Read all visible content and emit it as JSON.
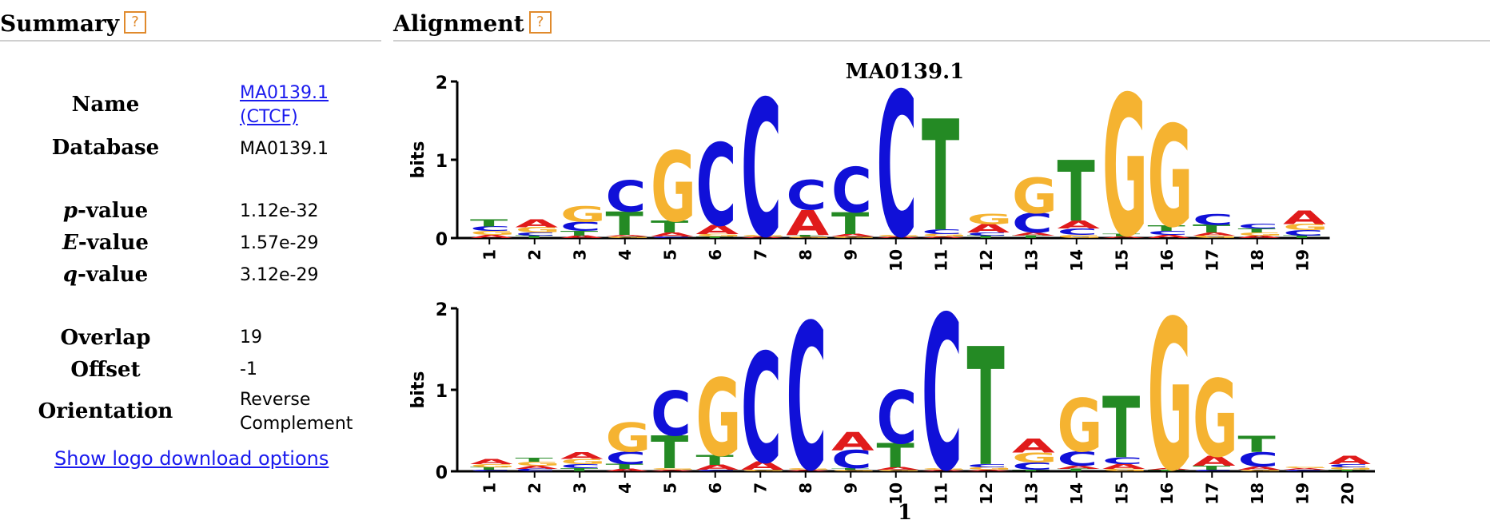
{
  "summary": {
    "title": "Summary",
    "help": "?",
    "rows": [
      {
        "label": "Name",
        "value_line1": "MA0139.1",
        "value_line2": "(CTCF)"
      },
      {
        "label": "Database",
        "value": "MA0139.1"
      },
      {
        "label_italic": "p",
        "label_rest": "-value",
        "value": "1.12e-32"
      },
      {
        "label_italic": "E",
        "label_rest": "-value",
        "value": "1.57e-29"
      },
      {
        "label_italic": "q",
        "label_rest": "-value",
        "value": "3.12e-29"
      },
      {
        "label": "Overlap",
        "value": "19"
      },
      {
        "label": "Offset",
        "value": "-1"
      },
      {
        "label": "Orientation",
        "value_line1": "Reverse",
        "value_line2": "Complement"
      }
    ],
    "download_link": "Show logo download options"
  },
  "alignment": {
    "title": "Alignment",
    "help": "?",
    "bottom_label": "1"
  },
  "colors": {
    "A": "#e01b1b",
    "C": "#1010d8",
    "G": "#f5b331",
    "T": "#248a24",
    "help": "#e08a2c",
    "link": "#1a1aee"
  },
  "chart_data": [
    {
      "type": "sequence-logo",
      "title": "MA0139.1",
      "ylabel": "bits",
      "ylim": [
        0,
        2
      ],
      "yticks": [
        "0",
        "1",
        "2"
      ],
      "positions": [
        "1",
        "2",
        "3",
        "4",
        "5",
        "6",
        "7",
        "8",
        "9",
        "10",
        "11",
        "12",
        "13",
        "14",
        "15",
        "16",
        "17",
        "18",
        "19"
      ],
      "stacks": [
        [
          [
            "T",
            0.09
          ],
          [
            "C",
            0.06
          ],
          [
            "G",
            0.05
          ],
          [
            "A",
            0.04
          ]
        ],
        [
          [
            "A",
            0.1
          ],
          [
            "G",
            0.07
          ],
          [
            "C",
            0.04
          ],
          [
            "T",
            0.03
          ]
        ],
        [
          [
            "G",
            0.2
          ],
          [
            "C",
            0.12
          ],
          [
            "T",
            0.06
          ],
          [
            "A",
            0.03
          ]
        ],
        [
          [
            "C",
            0.4
          ],
          [
            "T",
            0.3
          ],
          [
            "G",
            0.02
          ],
          [
            "A",
            0.02
          ]
        ],
        [
          [
            "G",
            0.9
          ],
          [
            "T",
            0.15
          ],
          [
            "A",
            0.05
          ],
          [
            "C",
            0.02
          ]
        ],
        [
          [
            "C",
            1.05
          ],
          [
            "A",
            0.12
          ],
          [
            "G",
            0.03
          ],
          [
            "T",
            0.02
          ]
        ],
        [
          [
            "C",
            1.75
          ],
          [
            "A",
            0.02
          ],
          [
            "G",
            0.02
          ]
        ],
        [
          [
            "C",
            0.38
          ],
          [
            "A",
            0.32
          ],
          [
            "G",
            0.02
          ],
          [
            "T",
            0.02
          ]
        ],
        [
          [
            "C",
            0.58
          ],
          [
            "T",
            0.28
          ],
          [
            "A",
            0.03
          ],
          [
            "G",
            0.02
          ]
        ],
        [
          [
            "C",
            1.85
          ],
          [
            "A",
            0.02
          ],
          [
            "G",
            0.02
          ]
        ],
        [
          [
            "T",
            1.42
          ],
          [
            "C",
            0.06
          ],
          [
            "G",
            0.03
          ],
          [
            "A",
            0.02
          ]
        ],
        [
          [
            "G",
            0.13
          ],
          [
            "A",
            0.11
          ],
          [
            "C",
            0.04
          ],
          [
            "T",
            0.03
          ]
        ],
        [
          [
            "G",
            0.45
          ],
          [
            "C",
            0.25
          ],
          [
            "A",
            0.04
          ],
          [
            "T",
            0.03
          ]
        ],
        [
          [
            "T",
            0.78
          ],
          [
            "A",
            0.1
          ],
          [
            "C",
            0.08
          ],
          [
            "G",
            0.04
          ]
        ],
        [
          [
            "G",
            1.8
          ],
          [
            "T",
            0.03
          ],
          [
            "A",
            0.02
          ]
        ],
        [
          [
            "G",
            1.3
          ],
          [
            "T",
            0.07
          ],
          [
            "C",
            0.05
          ],
          [
            "A",
            0.04
          ]
        ],
        [
          [
            "C",
            0.14
          ],
          [
            "T",
            0.1
          ],
          [
            "A",
            0.04
          ],
          [
            "G",
            0.03
          ]
        ],
        [
          [
            "C",
            0.06
          ],
          [
            "T",
            0.05
          ],
          [
            "G",
            0.04
          ],
          [
            "A",
            0.03
          ]
        ],
        [
          [
            "A",
            0.17
          ],
          [
            "G",
            0.08
          ],
          [
            "C",
            0.07
          ],
          [
            "T",
            0.03
          ]
        ]
      ]
    },
    {
      "type": "sequence-logo",
      "title": "",
      "ylabel": "bits",
      "ylim": [
        0,
        2
      ],
      "yticks": [
        "0",
        "1",
        "2"
      ],
      "positions": [
        "1",
        "2",
        "3",
        "4",
        "5",
        "6",
        "7",
        "8",
        "9",
        "10",
        "11",
        "12",
        "13",
        "14",
        "15",
        "16",
        "17",
        "18",
        "19",
        "20"
      ],
      "stacks": [
        [
          [
            "A",
            0.06
          ],
          [
            "G",
            0.04
          ],
          [
            "T",
            0.03
          ],
          [
            "C",
            0.02
          ]
        ],
        [
          [
            "G",
            0.05
          ],
          [
            "T",
            0.05
          ],
          [
            "A",
            0.04
          ],
          [
            "C",
            0.03
          ]
        ],
        [
          [
            "A",
            0.08
          ],
          [
            "G",
            0.06
          ],
          [
            "C",
            0.05
          ],
          [
            "T",
            0.04
          ]
        ],
        [
          [
            "G",
            0.36
          ],
          [
            "C",
            0.15
          ],
          [
            "T",
            0.06
          ],
          [
            "A",
            0.03
          ]
        ],
        [
          [
            "C",
            0.55
          ],
          [
            "T",
            0.4
          ],
          [
            "A",
            0.02
          ],
          [
            "G",
            0.02
          ]
        ],
        [
          [
            "G",
            0.95
          ],
          [
            "T",
            0.12
          ],
          [
            "A",
            0.06
          ],
          [
            "C",
            0.02
          ]
        ],
        [
          [
            "C",
            1.35
          ],
          [
            "A",
            0.1
          ],
          [
            "G",
            0.02
          ]
        ],
        [
          [
            "C",
            1.8
          ],
          [
            "A",
            0.02
          ],
          [
            "G",
            0.02
          ]
        ],
        [
          [
            "C",
            0.22
          ],
          [
            "A",
            0.22
          ],
          [
            "G",
            0.02
          ],
          [
            "T",
            0.02
          ]
        ],
        [
          [
            "C",
            0.65
          ],
          [
            "T",
            0.3
          ],
          [
            "A",
            0.03
          ],
          [
            "G",
            0.02
          ]
        ],
        [
          [
            "C",
            1.9
          ],
          [
            "A",
            0.02
          ],
          [
            "G",
            0.02
          ]
        ],
        [
          [
            "T",
            1.45
          ],
          [
            "C",
            0.04
          ],
          [
            "G",
            0.03
          ],
          [
            "A",
            0.02
          ]
        ],
        [
          [
            "G",
            0.12
          ],
          [
            "C",
            0.09
          ],
          [
            "A",
            0.17
          ],
          [
            "T",
            0.02
          ]
        ],
        [
          [
            "G",
            0.65
          ],
          [
            "C",
            0.18
          ],
          [
            "A",
            0.04
          ],
          [
            "T",
            0.03
          ]
        ],
        [
          [
            "T",
            0.75
          ],
          [
            "C",
            0.08
          ],
          [
            "A",
            0.06
          ],
          [
            "G",
            0.03
          ]
        ],
        [
          [
            "G",
            1.85
          ],
          [
            "T",
            0.02
          ],
          [
            "A",
            0.02
          ]
        ],
        [
          [
            "G",
            0.95
          ],
          [
            "A",
            0.12
          ],
          [
            "T",
            0.05
          ],
          [
            "C",
            0.02
          ]
        ],
        [
          [
            "C",
            0.18
          ],
          [
            "T",
            0.2
          ],
          [
            "A",
            0.04
          ],
          [
            "G",
            0.02
          ]
        ],
        [
          [
            "C",
            0.02
          ],
          [
            "A",
            0.02
          ],
          [
            "G",
            0.02
          ]
        ],
        [
          [
            "A",
            0.1
          ],
          [
            "C",
            0.04
          ],
          [
            "G",
            0.03
          ],
          [
            "T",
            0.02
          ]
        ]
      ]
    }
  ]
}
